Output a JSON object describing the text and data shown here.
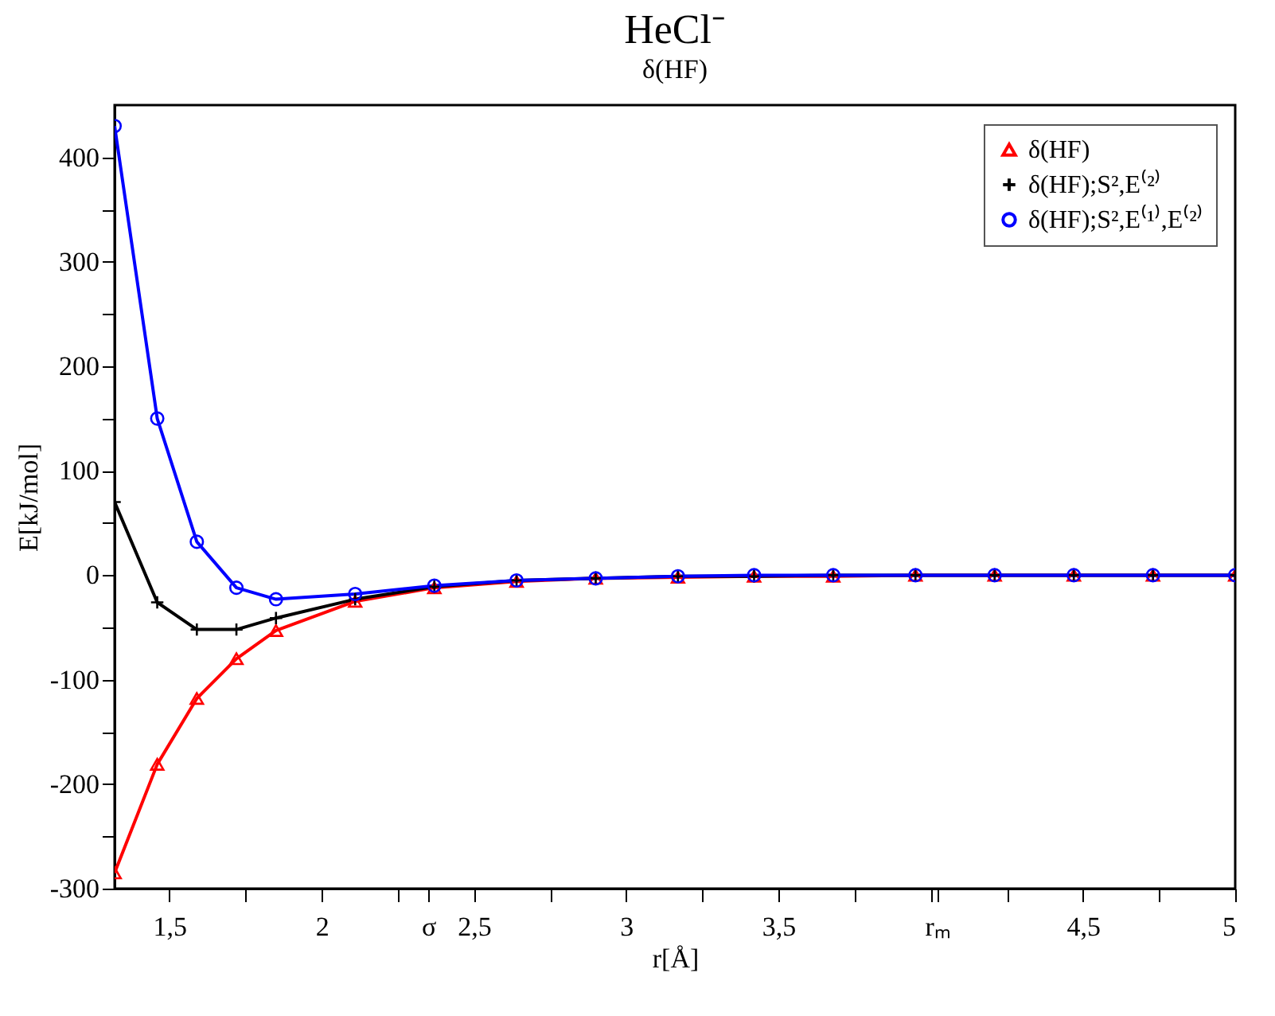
{
  "chart_data": {
    "type": "line",
    "title": "HeCl⁻",
    "subtitle": "δ(HF)",
    "xlabel": "r[Å]",
    "ylabel": "E[kJ/mol]",
    "xlim": [
      1.32,
      5.0
    ],
    "ylim": [
      -300,
      450
    ],
    "xticks": [
      {
        "value": 1.5,
        "label": "1,5"
      },
      {
        "value": 1.75,
        "label": null
      },
      2,
      {
        "value": 2.25,
        "label": null
      },
      {
        "value": 2.35,
        "label": "σ"
      },
      {
        "value": 2.5,
        "label": "2,5"
      },
      {
        "value": 2.75,
        "label": null
      },
      3,
      {
        "value": 3.25,
        "label": null
      },
      {
        "value": 3.5,
        "label": "3,5"
      },
      {
        "value": 3.75,
        "label": null
      },
      {
        "value": 4,
        "label": null
      },
      {
        "value": 4.02,
        "label": "rₘ"
      },
      {
        "value": 4.25,
        "label": null
      },
      {
        "value": 4.5,
        "label": "4,5"
      },
      {
        "value": 4.75,
        "label": null
      },
      5
    ],
    "yticks": [
      -300,
      {
        "value": -250,
        "label": null
      },
      -200,
      {
        "value": -150,
        "label": null
      },
      -100,
      {
        "value": -50,
        "label": null
      },
      0,
      {
        "value": 50,
        "label": null
      },
      100,
      {
        "value": 150,
        "label": null
      },
      200,
      {
        "value": 250,
        "label": null
      },
      300,
      {
        "value": 350,
        "label": null
      },
      400
    ],
    "x": [
      1.32,
      1.46,
      1.59,
      1.72,
      1.85,
      2.11,
      2.37,
      2.64,
      2.9,
      3.17,
      3.42,
      3.68,
      3.95,
      4.21,
      4.47,
      4.73,
      5.0
    ],
    "grid": false,
    "legend": "top right",
    "line_style": "solid",
    "series": [
      {
        "name": "δ(HF)",
        "color": "#ff0000",
        "marker": "triangle",
        "values": [
          -285,
          -181,
          -118,
          -80,
          -53,
          -25,
          -12,
          -6,
          -3,
          -2,
          -1,
          -1,
          0,
          0,
          0,
          0,
          0
        ]
      },
      {
        "name": "δ(HF);S²,E⁽²⁾",
        "color": "#000000",
        "marker": "cross",
        "values": [
          70,
          -26,
          -52,
          -52,
          -41,
          -23,
          -11,
          -5,
          -3,
          -1,
          -1,
          0,
          0,
          0,
          0,
          0,
          0
        ]
      },
      {
        "name": "δ(HF);S²,E⁽¹⁾,E⁽²⁾",
        "color": "#0000ff",
        "marker": "circle",
        "values": [
          430,
          150,
          32,
          -12,
          -23,
          -18,
          -10,
          -5,
          -3,
          -1,
          0,
          0,
          0,
          0,
          0,
          0,
          0
        ]
      }
    ]
  }
}
